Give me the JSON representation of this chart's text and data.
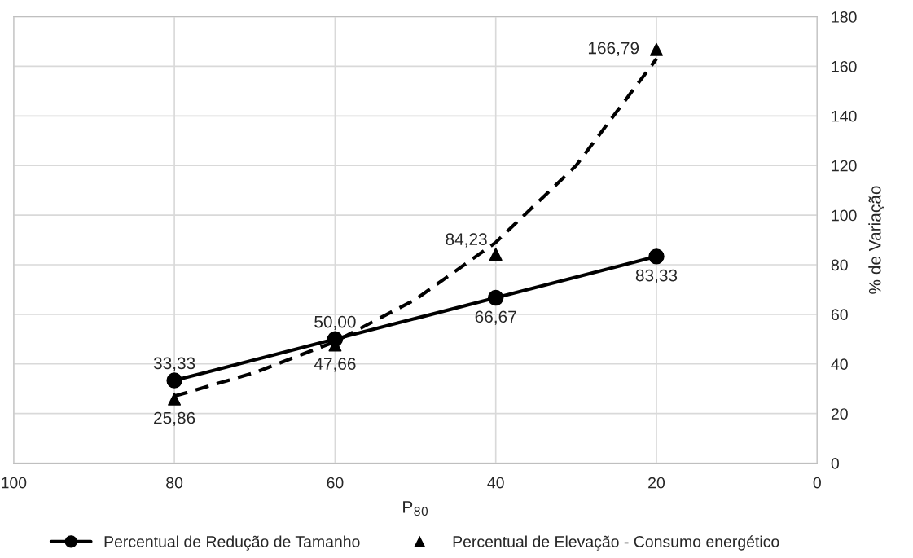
{
  "chart_data": {
    "type": "line",
    "xlabel": "P$_{80}$",
    "ylabel": "% de Variação",
    "x": [
      80,
      60,
      40,
      20
    ],
    "series": [
      {
        "name": "Percentual de Redução de Tamanho",
        "color": "#000000",
        "marker": "circle",
        "line_style": "solid",
        "values": [
          33.33,
          50.0,
          66.67,
          83.33
        ],
        "value_labels": [
          "33,33",
          "50,00",
          "66,67",
          "83,33"
        ]
      },
      {
        "name": "Percentual de Elevação - Consumo energético",
        "type": "scatter",
        "color": "#000000",
        "marker": "triangle",
        "values": [
          25.86,
          47.66,
          84.23,
          166.79
        ],
        "value_labels": [
          "25,86",
          "47,66",
          "84,23",
          "166,79"
        ]
      },
      {
        "color": "#000000",
        "marker": "none",
        "line_style": "dashed",
        "x": [
          80,
          70,
          60,
          50,
          40,
          30,
          20
        ],
        "values": [
          27,
          36.5,
          49,
          66,
          89,
          120,
          163
        ]
      }
    ],
    "xlim": [
      100,
      0
    ],
    "xticks": [
      100,
      80,
      60,
      40,
      20,
      0
    ],
    "ylim": [
      0,
      180
    ],
    "yticks": [
      0,
      20,
      40,
      60,
      80,
      100,
      120,
      140,
      160,
      180
    ],
    "grid": true,
    "legend": "bottom"
  }
}
